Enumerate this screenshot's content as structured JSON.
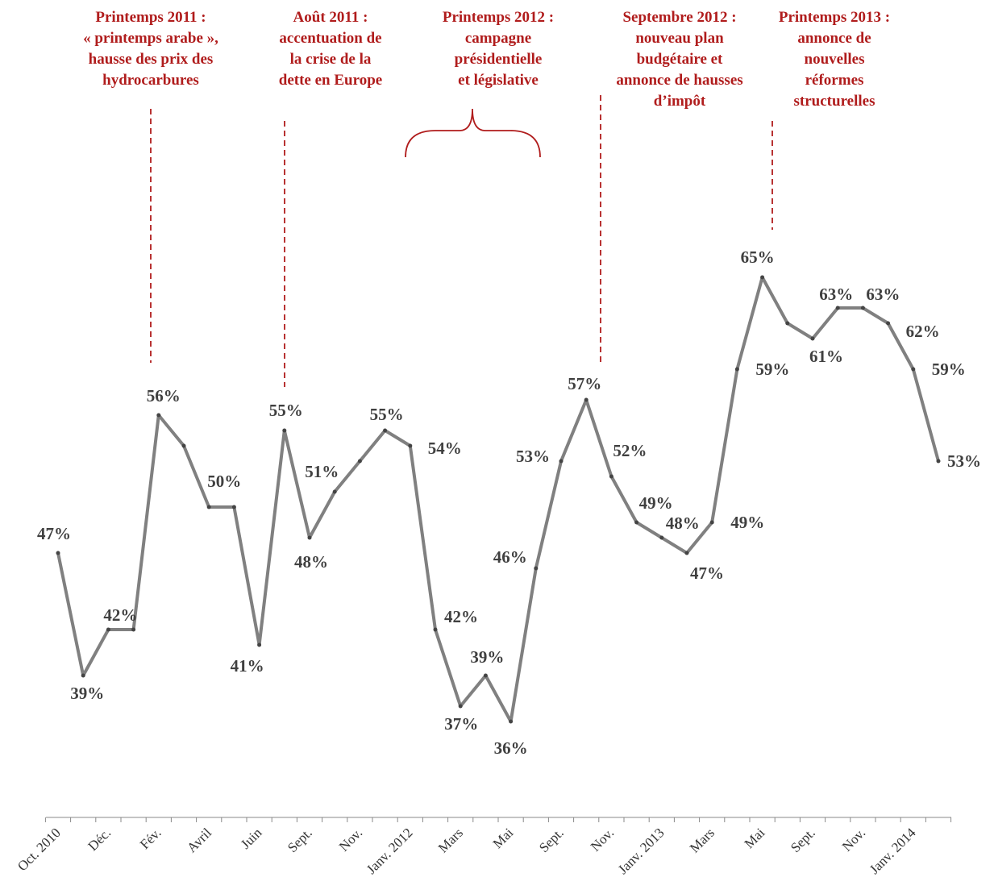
{
  "chart_data": {
    "type": "line",
    "categories": [
      "Oct. 2010",
      null,
      "Déc.",
      null,
      "Fév.",
      null,
      "Avril",
      null,
      "Juin",
      null,
      "Sept.",
      null,
      "Nov.",
      null,
      "Janv. 2012",
      null,
      "Mars",
      null,
      "Mai",
      null,
      "Sept.",
      null,
      "Nov.",
      null,
      "Janv. 2013",
      null,
      "Mars",
      null,
      "Mai",
      null,
      "Sept.",
      null,
      "Nov.",
      null,
      "Janv. 2014",
      null
    ],
    "series": [
      {
        "color": "#808080",
        "values": [
          47,
          39,
          42,
          42,
          56,
          54,
          50,
          50,
          41,
          55,
          48,
          51,
          53,
          55,
          54,
          42,
          37,
          39,
          36,
          46,
          53,
          57,
          52,
          49,
          48,
          47,
          49,
          59,
          65,
          62,
          61,
          63,
          63,
          62,
          59,
          53
        ],
        "value_labels": [
          "47%",
          "39%",
          "42%",
          null,
          "56%",
          null,
          "50%",
          null,
          "41%",
          "55%",
          "48%",
          "51%",
          null,
          "55%",
          "54%",
          "42%",
          "37%",
          "39%",
          "36%",
          "46%",
          "53%",
          "57%",
          "52%",
          "49%",
          "48%",
          "47%",
          "49%",
          "59%",
          "65%",
          null,
          "61%",
          "63%",
          "63%",
          "62%",
          "59%",
          "53%"
        ]
      }
    ],
    "ylim": [
      30,
      83
    ],
    "annotations": [
      {
        "lines": [
          "Printemps 2011 :",
          "« printemps arabe »,",
          "hausse des prix des",
          "hydrocarbures"
        ]
      },
      {
        "lines": [
          "Août 2011 :",
          "accentuation de",
          "la crise de la",
          "dette en Europe"
        ]
      },
      {
        "lines": [
          "Printemps 2012 :",
          "campagne",
          "présidentielle",
          "et législative"
        ]
      },
      {
        "lines": [
          "Septembre 2012 :",
          "nouveau plan",
          "budgétaire et",
          "annonce de hausses",
          "d’impôt"
        ]
      },
      {
        "lines": [
          "Printemps 2013 :",
          "annonce de",
          "nouvelles",
          "réformes",
          "structurelles"
        ]
      }
    ]
  }
}
